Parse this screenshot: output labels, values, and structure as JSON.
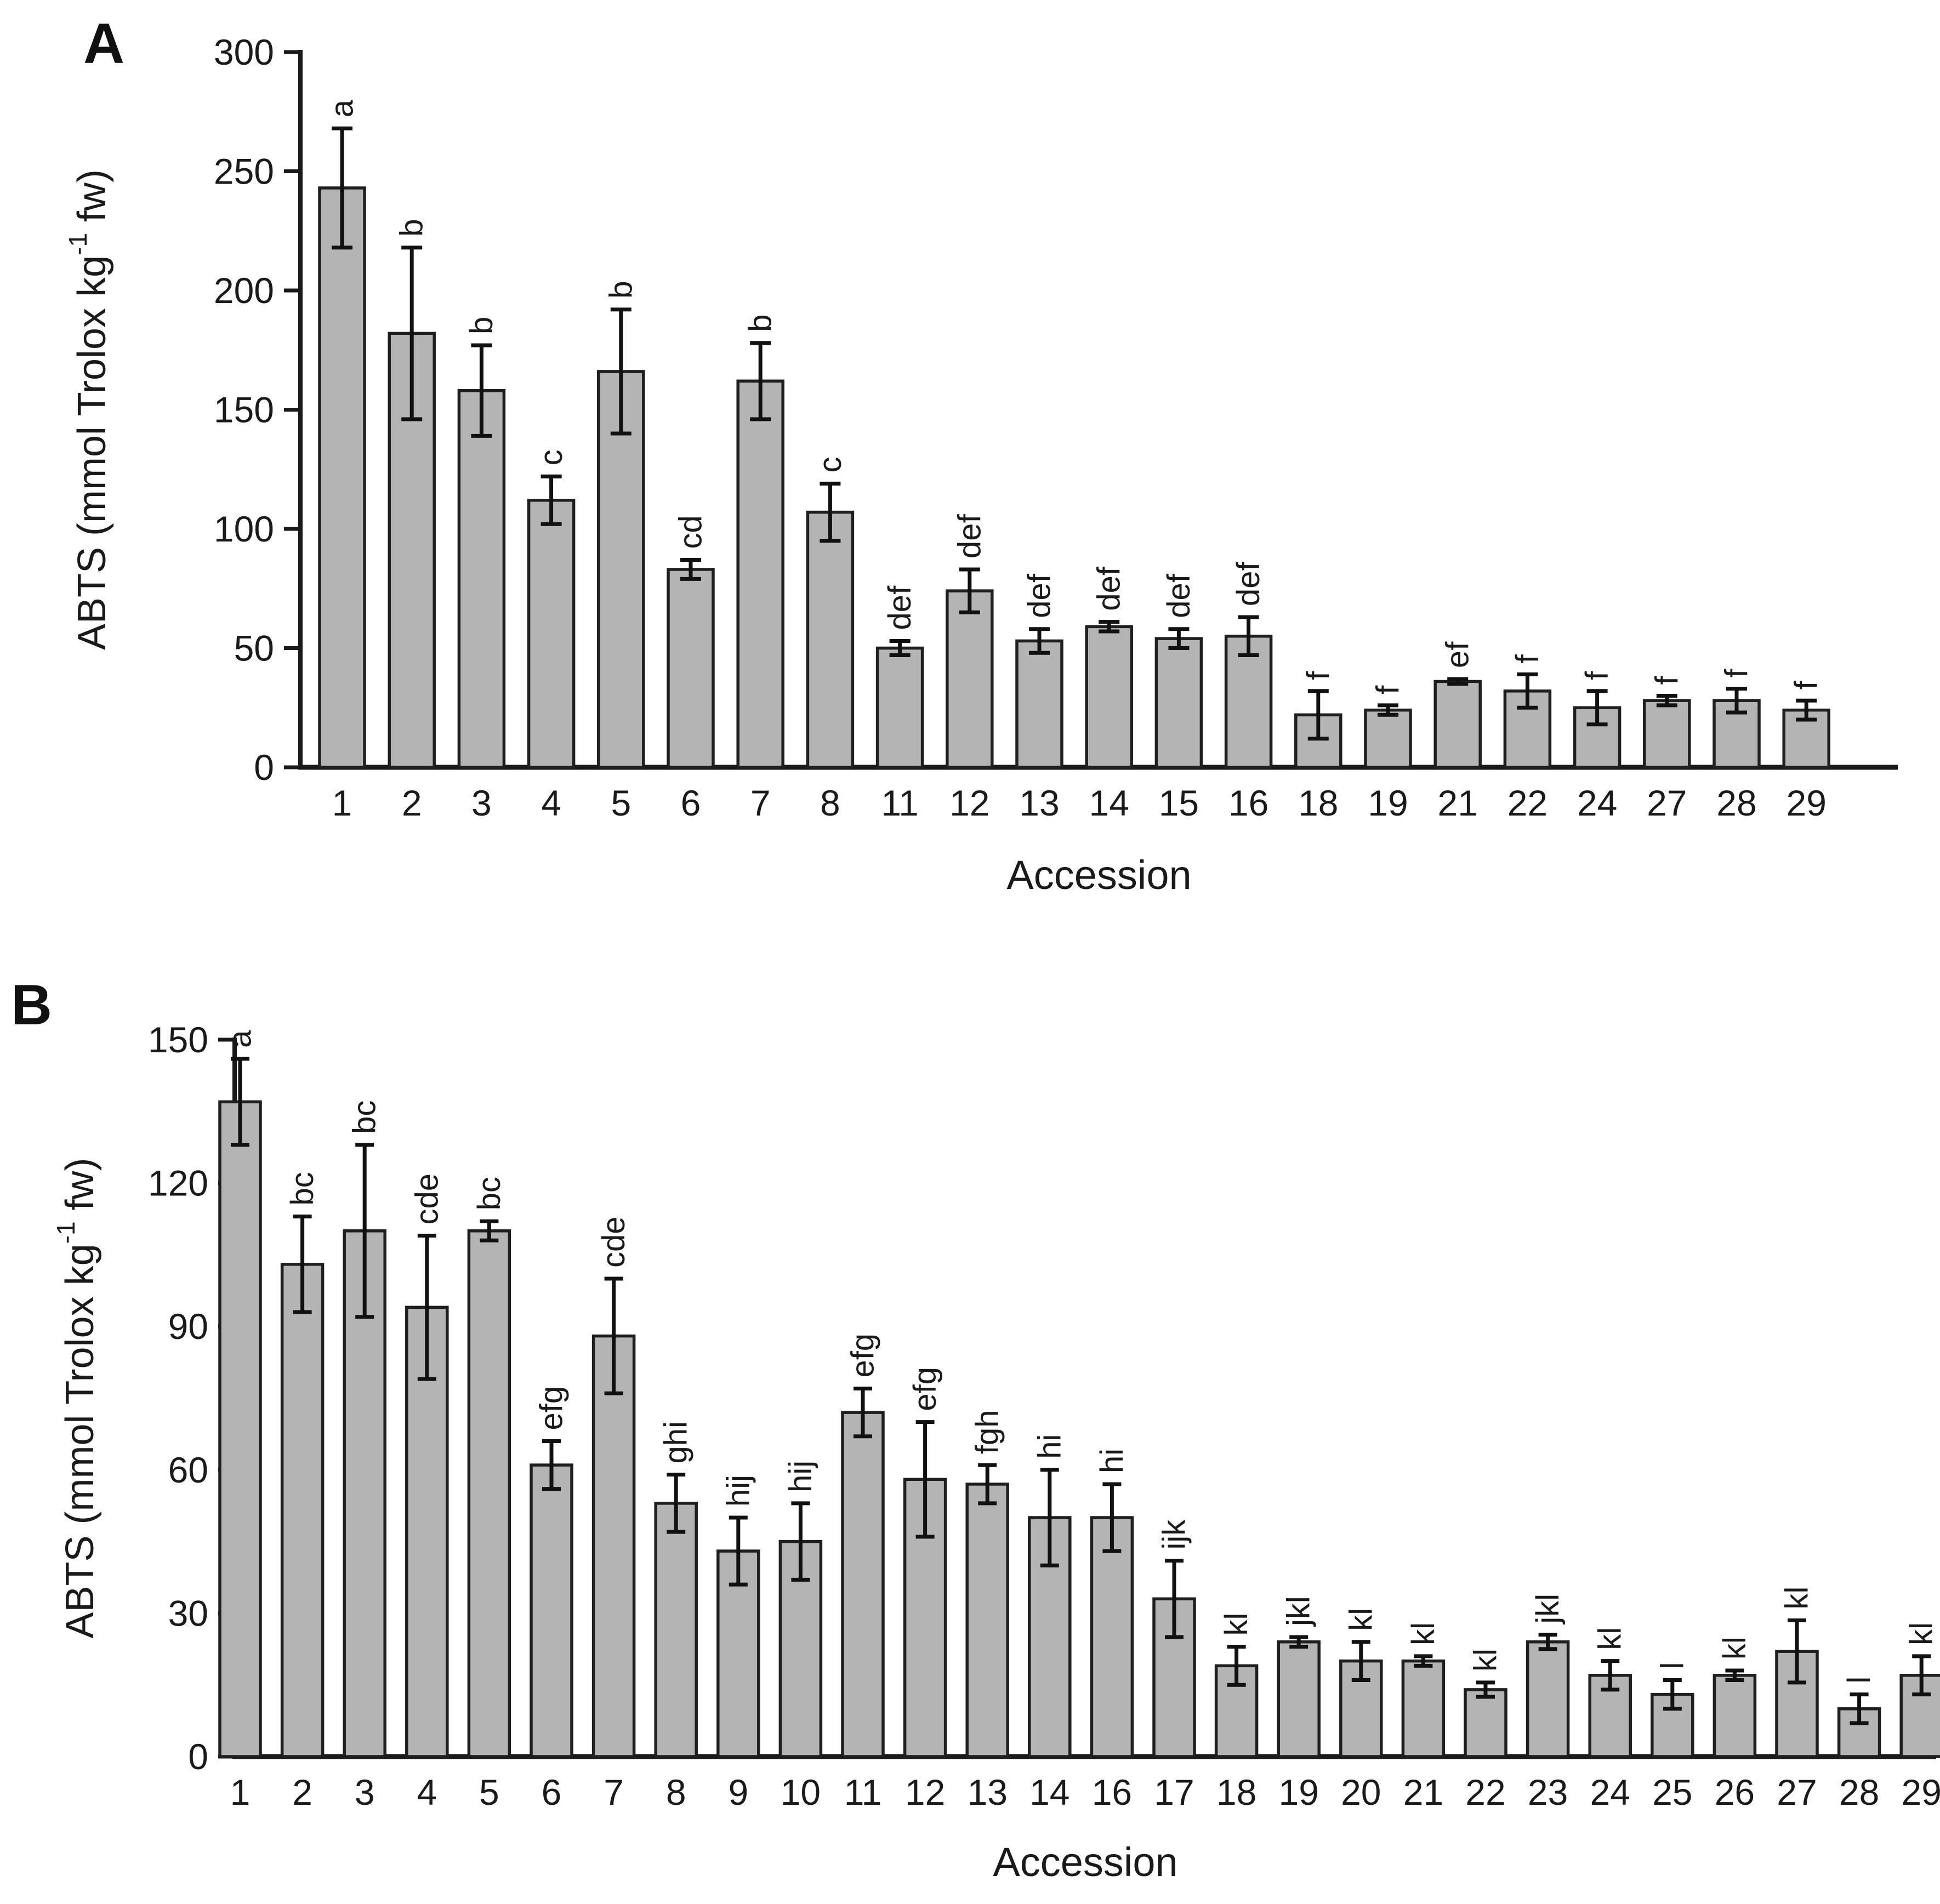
{
  "figure": {
    "background": "#ffffff",
    "panels": [
      {
        "label": "A"
      },
      {
        "label": "B"
      }
    ]
  },
  "chart_data": [
    {
      "type": "bar",
      "panel": "A",
      "title": "",
      "xlabel": "Accession",
      "ylabel": "ABTS (mmol Trolox kg-1 fw)",
      "ylabel_parts": {
        "prefix": "ABTS (mmol Trolox kg",
        "sup": "-1",
        "suffix": " fw)"
      },
      "ylim": [
        0,
        300
      ],
      "yticks": [
        0,
        50,
        100,
        150,
        200,
        250,
        300
      ],
      "grid": false,
      "legend": "none",
      "bar_color": "#b4b4b4",
      "bar_edge": "#1f1f1f",
      "categories": [
        "1",
        "2",
        "3",
        "4",
        "5",
        "6",
        "7",
        "8",
        "11",
        "12",
        "13",
        "14",
        "15",
        "16",
        "18",
        "19",
        "21",
        "22",
        "24",
        "27",
        "28",
        "29"
      ],
      "values": [
        243,
        182,
        158,
        112,
        166,
        83,
        162,
        107,
        50,
        74,
        53,
        59,
        54,
        55,
        22,
        24,
        36,
        32,
        25,
        28,
        28,
        24
      ],
      "errors": [
        25,
        36,
        19,
        10,
        26,
        4,
        16,
        12,
        3,
        9,
        5,
        2,
        4,
        8,
        10,
        2,
        1,
        7,
        7,
        2,
        5,
        4
      ],
      "sig_letters": [
        "a",
        "b",
        "b",
        "c",
        "b",
        "cd",
        "b",
        "c",
        "def",
        "def",
        "def",
        "def",
        "def",
        "def",
        "f",
        "f",
        "ef",
        "f",
        "f",
        "f",
        "f",
        "f"
      ]
    },
    {
      "type": "bar",
      "panel": "B",
      "title": "",
      "xlabel": "Accession",
      "ylabel": "ABTS (mmol Trolox kg-1 fw)",
      "ylabel_parts": {
        "prefix": "ABTS (mmol Trolox kg",
        "sup": "-1",
        "suffix": " fw)"
      },
      "ylim": [
        0,
        150
      ],
      "yticks": [
        0,
        30,
        60,
        90,
        120,
        150
      ],
      "grid": false,
      "legend": "none",
      "bar_color": "#b4b4b4",
      "bar_edge": "#1f1f1f",
      "categories": [
        "1",
        "2",
        "3",
        "4",
        "5",
        "6",
        "7",
        "8",
        "9",
        "10",
        "11",
        "12",
        "13",
        "14",
        "16",
        "17",
        "18",
        "19",
        "20",
        "21",
        "22",
        "23",
        "24",
        "25",
        "26",
        "27",
        "28",
        "29"
      ],
      "values": [
        137,
        103,
        110,
        94,
        110,
        61,
        88,
        53,
        43,
        45,
        72,
        58,
        57,
        50,
        50,
        33,
        19,
        24,
        20,
        20,
        14,
        24,
        17,
        13,
        17,
        22,
        10,
        17
      ],
      "errors": [
        9,
        10,
        18,
        15,
        2,
        5,
        12,
        6,
        7,
        8,
        5,
        12,
        4,
        10,
        7,
        8,
        4,
        1,
        4,
        1,
        1.5,
        1.5,
        3,
        3,
        1,
        6.5,
        3,
        4
      ],
      "sig_letters": [
        "a",
        "bc",
        "bc",
        "cde",
        "bc",
        "efg",
        "cde",
        "ghi",
        "hij",
        "hij",
        "efg",
        "efg",
        "fgh",
        "hi",
        "hi",
        "ijk",
        "kl",
        "jkl",
        "kl",
        "kl",
        "kl",
        "jkl",
        "kl",
        "l",
        "kl",
        "kl",
        "l",
        "kl"
      ]
    }
  ]
}
